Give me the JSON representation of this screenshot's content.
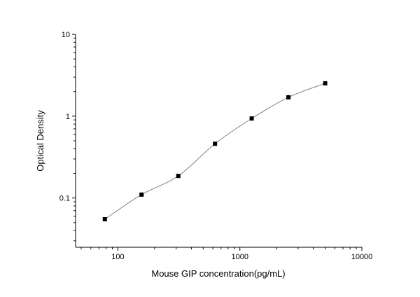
{
  "chart_data": {
    "type": "scatter",
    "title": "",
    "xlabel": "Mouse GIP concentration(pg/mL)",
    "ylabel": "Optical Density",
    "x_scale": "log",
    "y_scale": "log",
    "xlim": [
      45,
      10000
    ],
    "ylim": [
      0.025,
      10
    ],
    "x_ticks": [
      100,
      1000,
      10000
    ],
    "x_tick_labels": [
      "100",
      "1000",
      "10000"
    ],
    "y_ticks": [
      0.1,
      1,
      10
    ],
    "y_tick_labels": [
      "0.1",
      "1",
      "10"
    ],
    "grid": false,
    "series": [
      {
        "marker": "square",
        "fit_line": "smooth curve",
        "x": [
          78.125,
          156.25,
          312.5,
          625,
          1250,
          2500,
          5000
        ],
        "y": [
          0.055,
          0.11,
          0.186,
          0.46,
          0.937,
          1.7,
          2.52
        ]
      }
    ],
    "colors": {
      "marker": "#000000",
      "curve": "#808080",
      "axis": "#000000"
    }
  }
}
